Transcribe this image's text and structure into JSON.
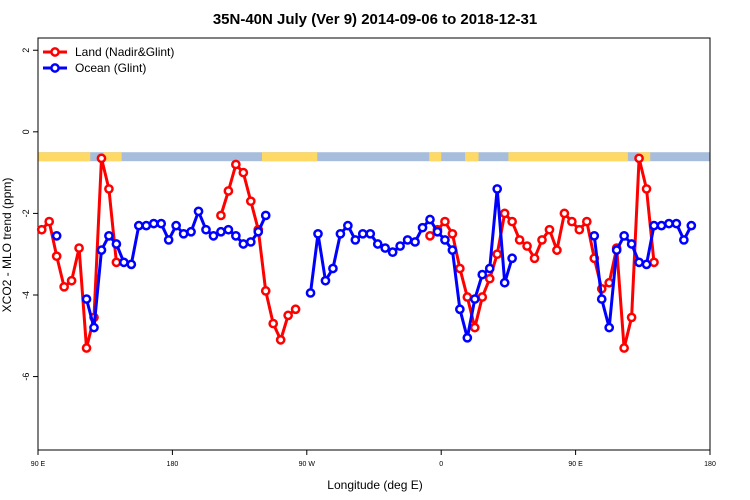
{
  "chart_data": {
    "type": "line",
    "title": "35N-40N July (Ver 9)   2014-09-06 to 2018-12-31",
    "xlabel": "Longitude (deg E)",
    "ylabel": "XCO2 - MLO trend (ppm)",
    "xlim": [
      90,
      540
    ],
    "ylim": [
      -7.8,
      2.3
    ],
    "x_ticks": [
      {
        "value": 90,
        "label": "90 E"
      },
      {
        "value": 180,
        "label": "180"
      },
      {
        "value": 270,
        "label": "90 W"
      },
      {
        "value": 360,
        "label": "0"
      },
      {
        "value": 450,
        "label": "90 E"
      },
      {
        "value": 540,
        "label": "180"
      }
    ],
    "y_ticks": [
      {
        "value": 2,
        "label": "2"
      },
      {
        "value": 0,
        "label": "0"
      },
      {
        "value": -2,
        "label": "-2"
      },
      {
        "value": -4,
        "label": "-4"
      },
      {
        "value": -6,
        "label": "-6"
      }
    ],
    "grid": false,
    "legend_position": "top-left",
    "series": [
      {
        "name": "Land (Nadir&Glint)",
        "color": "#ff0000",
        "points": [
          [
            92.5,
            -2.4
          ],
          [
            97.5,
            -2.2
          ],
          [
            102.5,
            -3.05
          ],
          [
            107.5,
            -3.8
          ],
          [
            112.5,
            -3.65
          ],
          [
            117.5,
            -2.85
          ],
          [
            122.5,
            -5.3
          ],
          [
            127.5,
            -4.55
          ],
          [
            132.5,
            -0.65
          ],
          [
            137.5,
            -1.4
          ],
          [
            142.5,
            -3.2
          ],
          [
            212.5,
            -2.05
          ],
          [
            217.5,
            -1.45
          ],
          [
            222.5,
            -0.8
          ],
          [
            227.5,
            -1.0
          ],
          [
            232.5,
            -1.7
          ],
          [
            237.5,
            -2.4
          ],
          [
            242.5,
            -3.9
          ],
          [
            247.5,
            -4.7
          ],
          [
            252.5,
            -5.1
          ],
          [
            257.5,
            -4.5
          ],
          [
            262.5,
            -4.35
          ],
          [
            352.5,
            -2.55
          ],
          [
            357.5,
            -2.4
          ],
          [
            362.5,
            -2.2
          ],
          [
            367.5,
            -2.5
          ],
          [
            372.5,
            -3.35
          ],
          [
            377.5,
            -4.05
          ],
          [
            382.5,
            -4.8
          ],
          [
            387.5,
            -4.05
          ],
          [
            392.5,
            -3.6
          ],
          [
            397.5,
            -3.0
          ],
          [
            402.5,
            -2.0
          ],
          [
            407.5,
            -2.2
          ],
          [
            412.5,
            -2.65
          ],
          [
            417.5,
            -2.8
          ],
          [
            422.5,
            -3.1
          ],
          [
            427.5,
            -2.65
          ],
          [
            432.5,
            -2.4
          ],
          [
            437.5,
            -2.9
          ],
          [
            442.5,
            -2.0
          ],
          [
            447.5,
            -2.2
          ],
          [
            452.5,
            -2.4
          ],
          [
            457.5,
            -2.2
          ],
          [
            462.5,
            -3.1
          ],
          [
            467.5,
            -3.85
          ],
          [
            472.5,
            -3.7
          ],
          [
            477.5,
            -2.85
          ],
          [
            482.5,
            -5.3
          ],
          [
            487.5,
            -4.55
          ],
          [
            492.5,
            -0.65
          ],
          [
            497.5,
            -1.4
          ],
          [
            502.5,
            -3.2
          ]
        ]
      },
      {
        "name": "Ocean (Glint)",
        "color": "#0000ff",
        "points": [
          [
            102.5,
            -2.55
          ],
          [
            122.5,
            -4.1
          ],
          [
            127.5,
            -4.8
          ],
          [
            132.5,
            -2.9
          ],
          [
            137.5,
            -2.55
          ],
          [
            142.5,
            -2.75
          ],
          [
            147.5,
            -3.2
          ],
          [
            152.5,
            -3.25
          ],
          [
            157.5,
            -2.3
          ],
          [
            162.5,
            -2.3
          ],
          [
            167.5,
            -2.25
          ],
          [
            172.5,
            -2.25
          ],
          [
            177.5,
            -2.65
          ],
          [
            182.5,
            -2.3
          ],
          [
            187.5,
            -2.5
          ],
          [
            192.5,
            -2.45
          ],
          [
            197.5,
            -1.95
          ],
          [
            202.5,
            -2.4
          ],
          [
            207.5,
            -2.55
          ],
          [
            212.5,
            -2.45
          ],
          [
            217.5,
            -2.4
          ],
          [
            222.5,
            -2.55
          ],
          [
            227.5,
            -2.75
          ],
          [
            232.5,
            -2.7
          ],
          [
            237.5,
            -2.45
          ],
          [
            242.5,
            -2.05
          ],
          [
            272.5,
            -3.95
          ],
          [
            277.5,
            -2.5
          ],
          [
            282.5,
            -3.65
          ],
          [
            287.5,
            -3.35
          ],
          [
            292.5,
            -2.5
          ],
          [
            297.5,
            -2.3
          ],
          [
            302.5,
            -2.65
          ],
          [
            307.5,
            -2.5
          ],
          [
            312.5,
            -2.5
          ],
          [
            317.5,
            -2.75
          ],
          [
            322.5,
            -2.85
          ],
          [
            327.5,
            -2.95
          ],
          [
            332.5,
            -2.8
          ],
          [
            337.5,
            -2.65
          ],
          [
            342.5,
            -2.7
          ],
          [
            347.5,
            -2.35
          ],
          [
            352.5,
            -2.15
          ],
          [
            357.5,
            -2.45
          ],
          [
            362.5,
            -2.65
          ],
          [
            367.5,
            -2.9
          ],
          [
            372.5,
            -4.35
          ],
          [
            377.5,
            -5.05
          ],
          [
            382.5,
            -4.1
          ],
          [
            387.5,
            -3.5
          ],
          [
            392.5,
            -3.35
          ],
          [
            397.5,
            -1.4
          ],
          [
            402.5,
            -3.7
          ],
          [
            407.5,
            -3.1
          ],
          [
            462.5,
            -2.55
          ],
          [
            467.5,
            -4.1
          ],
          [
            472.5,
            -4.8
          ],
          [
            477.5,
            -2.9
          ],
          [
            482.5,
            -2.55
          ],
          [
            487.5,
            -2.75
          ],
          [
            492.5,
            -3.2
          ],
          [
            497.5,
            -3.25
          ],
          [
            502.5,
            -2.3
          ],
          [
            507.5,
            -2.3
          ],
          [
            512.5,
            -2.25
          ],
          [
            517.5,
            -2.25
          ],
          [
            522.5,
            -2.65
          ],
          [
            527.5,
            -2.3
          ]
        ]
      }
    ],
    "surface_band": {
      "y_range": [
        -0.72,
        -0.5
      ],
      "land_color": "#ffd966",
      "ocean_color": "#a6bddb",
      "land_segments": [
        [
          90,
          125
        ],
        [
          134,
          146
        ],
        [
          240,
          277
        ],
        [
          352,
          360
        ],
        [
          376,
          385
        ],
        [
          405,
          485
        ],
        [
          492,
          500
        ]
      ]
    }
  }
}
